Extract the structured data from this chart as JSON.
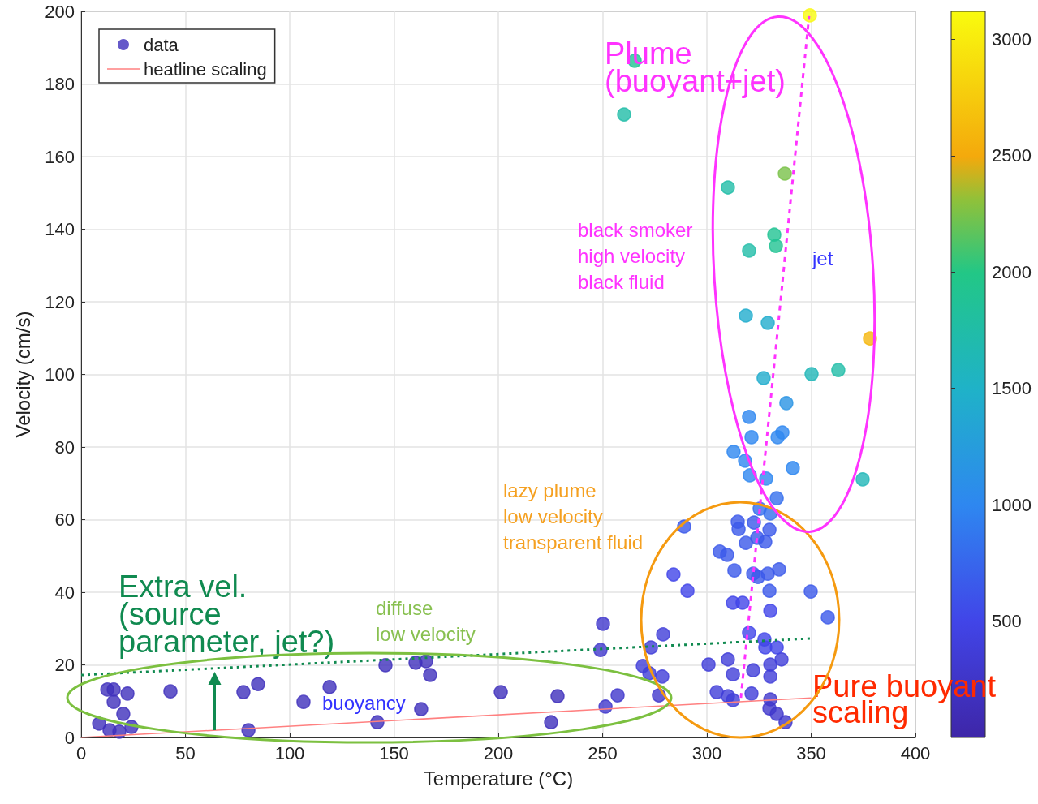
{
  "chart_data": {
    "type": "scatter",
    "xlabel": "Temperature (°C)",
    "ylabel": "Velocity (cm/s)",
    "xlim": [
      0,
      400
    ],
    "xticks": [
      0,
      50,
      100,
      150,
      200,
      250,
      300,
      350,
      400
    ],
    "ylim": [
      0,
      200
    ],
    "yticks": [
      0,
      20,
      40,
      60,
      80,
      100,
      120,
      140,
      160,
      180,
      200
    ],
    "clim": [
      0,
      3120
    ],
    "cticks": [
      500,
      1000,
      1500,
      2000,
      2500,
      3000
    ],
    "grid": true,
    "legend": "top left",
    "marker": "circle",
    "annotations": [
      "Plume\n(buoyant+jet)",
      "black smoker\nhigh velocity\nblack fluid",
      "jet",
      "lazy plume\nlow velocity\ntransparent fluid",
      {
        "text": "Extra vel.\n(source\nparameter, jet?)",
        "x": 64,
        "y": 18.1
      },
      "diffuse\nlow velocity",
      "buoyancy",
      "Pure buoyant\nscaling"
    ],
    "series": [
      {
        "name": "data",
        "colors": [
          "#3f2fbb",
          "#3f2fbb",
          "#3f2fbb",
          "#3f2fbb",
          "#3f2fbb",
          "#3f2fbb",
          "#3f2fbb",
          "#3f2fbb",
          "#3f2fbb",
          "#3f2fbb",
          "#3f2fbb",
          "#3f2fbb",
          "#3f2fbb",
          "#3f2fbb",
          "#3f2fbb",
          "#3f2fbb",
          "#3f2fbb",
          "#3f2fbb",
          "#3f2fbb",
          "#3f2fbb",
          "#3f2fbb",
          "#3f2fbb",
          "#3f2fbb",
          "#3f2fbb",
          "#4037cc",
          "#4037cc",
          "#4037cc",
          "#4037cc",
          "#403dd8",
          "#403dd8",
          "#403dd8",
          "#403dd8",
          "#403dd8",
          "#4037cc",
          "#403dd8",
          "#403dd8",
          "#403dd8",
          "#403dd8",
          "#403dd8",
          "#403dd8",
          "#403dd8",
          "#403dd8",
          "#4037cc",
          "#4037cc",
          "#4037cc",
          "#4037cc",
          "#403dd8",
          "#403dd8",
          "#403dd8",
          "#4145e8",
          "#4145e8",
          "#4145e8",
          "#4145e8",
          "#4145e8",
          "#3b59ea",
          "#4145e8",
          "#4145e8",
          "#3b59ea",
          "#4145e8",
          "#4145e8",
          "#3b59ea",
          "#3b59ea",
          "#3b59ea",
          "#3b59ea",
          "#3b59ea",
          "#3b59ea",
          "#3b59ea",
          "#3b59ea",
          "#3b59ea",
          "#3b59ea",
          "#3b59ea",
          "#3b59ea",
          "#3b59ea",
          "#3b59ea",
          "#3b59ea",
          "#3b59ea",
          "#2994e4",
          "#2e87f0",
          "#2e87f0",
          "#2e87f0",
          "#2e87f0",
          "#2e87f0",
          "#2e87f0",
          "#2e87f0",
          "#2e87f0",
          "#2e87f0",
          "#356fee",
          "#356fee",
          "#356fee",
          "#20b7b8",
          "#f9fb0e",
          "#21c392",
          "#21bda7",
          "#21bda7",
          "#79c24a",
          "#21c392",
          "#21c392",
          "#21bda7",
          "#21accd",
          "#21accd",
          "#f5b60c",
          "#21accd",
          "#20b7b8",
          "#21bda7"
        ],
        "x": [
          12.5,
          15.6,
          22.2,
          15.6,
          20.2,
          8.6,
          13.6,
          18.3,
          24.1,
          42.8,
          77.8,
          84.8,
          80.2,
          106.6,
          119.1,
          145.9,
          160.3,
          165.4,
          167.3,
          142.0,
          163.0,
          201.2,
          228.4,
          225.3,
          250.2,
          249.0,
          251.4,
          257.2,
          273.2,
          279.0,
          269.3,
          272.4,
          278.6,
          277.0,
          300.8,
          310.1,
          312.5,
          322.2,
          304.7,
          310.1,
          312.5,
          321.4,
          330.4,
          330.0,
          333.5,
          337.7,
          330.4,
          330.4,
          335.8,
          328.0,
          333.5,
          327.6,
          320.2,
          330.4,
          358.0,
          312.5,
          317.1,
          289.1,
          284.0,
          290.7,
          306.2,
          309.7,
          313.2,
          314.8,
          315.2,
          318.7,
          322.6,
          324.1,
          328.0,
          330.0,
          322.2,
          324.5,
          329.2,
          334.6,
          330.0,
          349.8,
          338.1,
          320.2,
          321.4,
          333.9,
          336.2,
          312.8,
          318.3,
          341.2,
          320.6,
          328.4,
          333.5,
          325.3,
          330.4,
          374.7,
          349.4,
          265.4,
          260.3,
          310.1,
          337.4,
          332.3,
          333.1,
          320.2,
          318.7,
          329.2,
          378.2,
          327.2,
          350.2,
          363.0
        ],
        "values": [
          13.2,
          13.2,
          12.1,
          9.8,
          6.5,
          3.8,
          2.0,
          1.6,
          2.9,
          12.7,
          12.5,
          14.7,
          2.0,
          9.8,
          13.9,
          19.9,
          20.6,
          21.0,
          17.2,
          4.2,
          7.8,
          12.5,
          11.4,
          4.2,
          31.3,
          24.1,
          8.5,
          11.6,
          24.8,
          28.4,
          19.7,
          17.7,
          16.8,
          11.6,
          20.1,
          21.5,
          17.4,
          18.5,
          12.5,
          11.4,
          10.3,
          12.1,
          10.5,
          8.0,
          6.5,
          4.2,
          20.1,
          16.8,
          21.5,
          24.8,
          24.8,
          27.0,
          28.8,
          34.9,
          33.1,
          37.1,
          37.1,
          58.1,
          44.9,
          40.4,
          51.2,
          50.3,
          46.0,
          59.4,
          57.4,
          53.6,
          59.2,
          55.0,
          53.9,
          57.2,
          45.1,
          44.2,
          45.1,
          46.3,
          40.4,
          40.2,
          92.1,
          88.3,
          82.7,
          82.7,
          84.0,
          78.7,
          76.2,
          74.2,
          72.2,
          71.3,
          65.9,
          63.0,
          61.7,
          71.1,
          198.9,
          186.4,
          171.6,
          151.5,
          155.3,
          138.5,
          135.4,
          134.1,
          116.2,
          114.2,
          109.9,
          99.0,
          100.1,
          101.2
        ],
        "cvalues": [
          150,
          150,
          150,
          150,
          150,
          150,
          150,
          150,
          150,
          150,
          150,
          150,
          150,
          150,
          150,
          150,
          150,
          150,
          150,
          150,
          150,
          150,
          150,
          150,
          280,
          280,
          280,
          280,
          375,
          375,
          375,
          375,
          375,
          280,
          375,
          375,
          375,
          375,
          375,
          375,
          375,
          375,
          280,
          280,
          280,
          280,
          375,
          375,
          375,
          500,
          500,
          500,
          500,
          500,
          650,
          500,
          500,
          650,
          500,
          500,
          650,
          650,
          650,
          650,
          650,
          650,
          650,
          650,
          650,
          650,
          650,
          650,
          650,
          650,
          650,
          650,
          1150,
          1000,
          1000,
          1000,
          1000,
          1000,
          1000,
          1000,
          1000,
          1000,
          810,
          810,
          810,
          1620,
          3100,
          1900,
          1750,
          1750,
          2250,
          1900,
          1900,
          1750,
          1430,
          1430,
          2600,
          1430,
          1620,
          1750
        ]
      },
      {
        "name": "heatline scaling",
        "type": "line",
        "color": "#ff8080",
        "line_style": "solid",
        "marker": "none",
        "x": [
          0,
          350
        ],
        "values": [
          0,
          10.9
        ]
      },
      {
        "type": "line",
        "color": "#108a50",
        "line_style": "dotted",
        "marker": "none",
        "x": [
          0,
          351
        ],
        "values": [
          17.2,
          27.3
        ]
      },
      {
        "type": "line",
        "color": "#ff33ff",
        "line_style": "dashed",
        "marker": "none",
        "x": [
          316.3,
          349
        ],
        "values": [
          10.9,
          198.7
        ]
      }
    ]
  }
}
